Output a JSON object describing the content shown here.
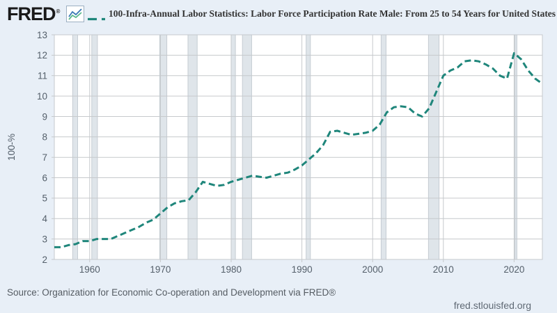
{
  "header": {
    "logo_text": "FRED",
    "logo_registered": "®",
    "title": "100-Infra-Annual Labor Statistics: Labor Force Participation Rate Male: From 25 to 54 Years for United States"
  },
  "footer": {
    "source": "Source: Organization for Economic Co-operation and Development via FRED®",
    "watermark": "fred.stlouisfed.org"
  },
  "colors": {
    "page_bg": "#e8eff7",
    "plot_bg": "#ffffff",
    "grid": "#c6c9cc",
    "recession_band": "#dfe5ea",
    "recession_edge": "#c5ccd3",
    "line": "#1f867b",
    "axis_text": "#545f6a",
    "title_text": "#333333",
    "logo_text": "#1a1a1a",
    "logo_icon_blue": "#3a78b5",
    "logo_icon_green": "#59b88c"
  },
  "chart_data": {
    "type": "line",
    "title": "100-Infra-Annual Labor Statistics: Labor Force Participation Rate Male: From 25 to 54 Years for United States",
    "series_name": "Labor Force Participation Rate Male: From 25 to 54 Years for United States (100 minus percent)",
    "xlabel": "",
    "ylabel": "100-%",
    "line_style": "dashed",
    "grid": true,
    "legend_position": "top",
    "xlim": [
      1955,
      2024
    ],
    "ylim": [
      2,
      13
    ],
    "y_ticks": [
      2,
      3,
      4,
      5,
      6,
      7,
      8,
      9,
      10,
      11,
      12,
      13
    ],
    "x_ticks": [
      1960,
      1970,
      1980,
      1990,
      2000,
      2010,
      2020
    ],
    "years": [
      1955,
      1956,
      1957,
      1958,
      1959,
      1960,
      1961,
      1962,
      1963,
      1964,
      1965,
      1966,
      1967,
      1968,
      1969,
      1970,
      1971,
      1972,
      1973,
      1974,
      1975,
      1976,
      1977,
      1978,
      1979,
      1980,
      1981,
      1982,
      1983,
      1984,
      1985,
      1986,
      1987,
      1988,
      1989,
      1990,
      1991,
      1992,
      1993,
      1994,
      1995,
      1996,
      1997,
      1998,
      1999,
      2000,
      2001,
      2002,
      2003,
      2004,
      2005,
      2006,
      2007,
      2008,
      2009,
      2010,
      2011,
      2012,
      2013,
      2014,
      2015,
      2016,
      2017,
      2018,
      2019,
      2020,
      2021,
      2022,
      2023,
      2024
    ],
    "values": [
      2.6,
      2.6,
      2.7,
      2.75,
      2.9,
      2.9,
      3.0,
      3.0,
      3.0,
      3.15,
      3.3,
      3.45,
      3.6,
      3.8,
      3.95,
      4.25,
      4.55,
      4.75,
      4.85,
      4.9,
      5.3,
      5.8,
      5.7,
      5.6,
      5.65,
      5.8,
      5.9,
      6.0,
      6.1,
      6.05,
      6.0,
      6.1,
      6.2,
      6.25,
      6.4,
      6.6,
      6.9,
      7.2,
      7.6,
      8.25,
      8.3,
      8.2,
      8.1,
      8.15,
      8.2,
      8.3,
      8.6,
      9.2,
      9.45,
      9.5,
      9.45,
      9.15,
      9.0,
      9.4,
      10.2,
      11.0,
      11.25,
      11.4,
      11.7,
      11.75,
      11.7,
      11.55,
      11.35,
      11.0,
      10.85,
      12.1,
      11.8,
      11.25,
      10.85,
      10.6
    ],
    "recession_bands": [
      [
        1957.6,
        1958.3
      ],
      [
        1960.3,
        1961.1
      ],
      [
        1969.9,
        1970.9
      ],
      [
        1973.9,
        1975.2
      ],
      [
        1980.0,
        1980.6
      ],
      [
        1981.6,
        1982.9
      ],
      [
        1990.6,
        1991.2
      ],
      [
        2001.2,
        2001.9
      ],
      [
        2007.9,
        2009.4
      ],
      [
        2020.1,
        2020.4
      ]
    ]
  }
}
